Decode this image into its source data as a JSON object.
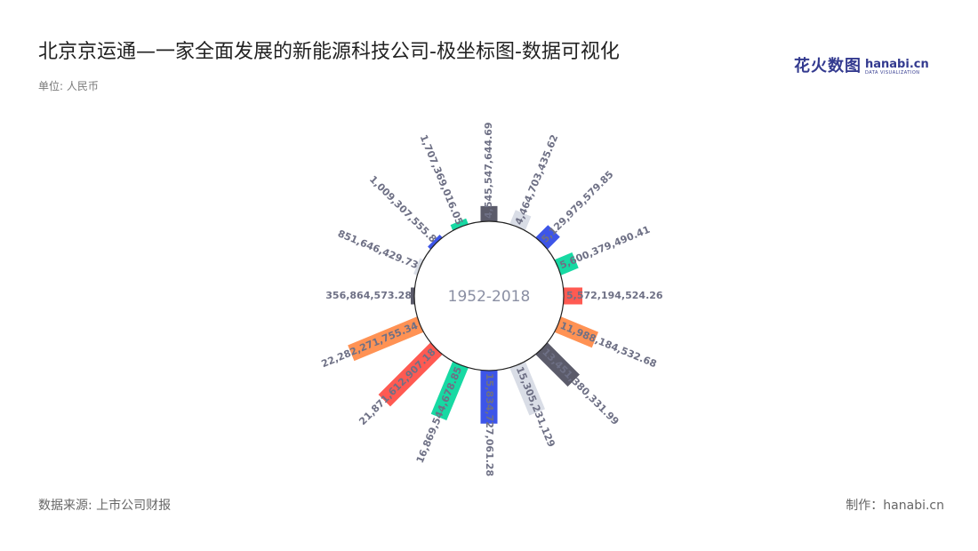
{
  "header": {
    "title": "北京京运通—一家全面发展的新能源科技公司-极坐标图-数据可视化",
    "unit": "单位: 人民币"
  },
  "logo": {
    "cn": "花火数图",
    "en": "hanabi.cn",
    "sub": "DATA VISUALIZATION"
  },
  "footer": {
    "source": "数据来源: 上市公司财报",
    "maker": "制作：hanabi.cn"
  },
  "colors": {
    "bg": "#ffffff",
    "palette": [
      "#5b5b6a",
      "#d9dde6",
      "#3d55e8",
      "#17d9a3",
      "#ff5a52",
      "#ff9254"
    ],
    "label": "#6e7085",
    "center_text": "#8a8fa3"
  },
  "chart_data": {
    "type": "bar",
    "layout": "polar-radial",
    "center_label": "1952-2018",
    "values": [
      4545547644.69,
      4464703435.62,
      5129979579.85,
      5600379490.41,
      5572194524.26,
      11988184532.68,
      13451380331.99,
      15305231129,
      15834727061.28,
      16869544678.85,
      21871612907.18,
      22282271755.34,
      356864573.28,
      851646429.73,
      1009307555.8,
      1707369016.05
    ],
    "labels": [
      "4,545,547,644.69",
      "4,464,703,435.62",
      "5,129,979,579.85",
      "5,600,379,490.41",
      "5,572,194,524.26",
      "11,988,184,532.68",
      "13,451,380,331.99",
      "15,305,231,129",
      "15,834,727,061.28",
      "16,869,544,678.85",
      "21,871,612,907.18",
      "22,282,271,755.34",
      "356,864,573.28",
      "851,646,429.73",
      "1,009,307,555.8",
      "1,707,369,016.05"
    ],
    "grid": false,
    "legend": "none"
  }
}
